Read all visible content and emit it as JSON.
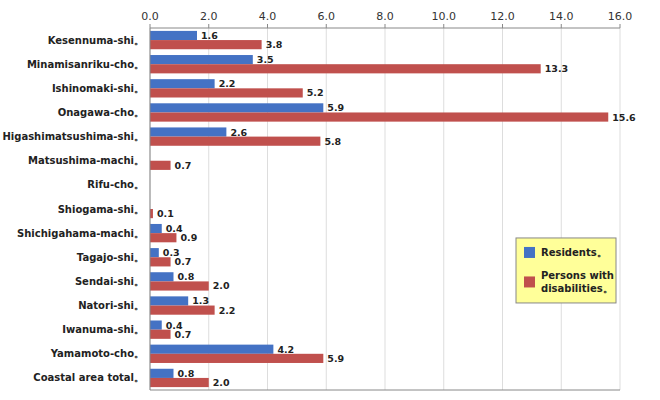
{
  "chart_data": {
    "type": "bar",
    "orientation": "horizontal",
    "categories": [
      "Coastal area total。",
      "Yamamoto-cho。",
      "Iwanuma-shi。",
      "Natori-shi。",
      "Sendai-shi。",
      "Tagajo-shi。",
      "Shichigahama-machi。",
      "Shiogama-shi。",
      "Rifu-cho。",
      "Matsushima-machi。",
      "Higashimatsushima-shi。",
      "Onagawa-cho。",
      "Ishinomaki-shi。",
      "Minamisanriku-cho。",
      "Kesennuma-shi。"
    ],
    "series": [
      {
        "name": "Residents。",
        "color": "#4472C4",
        "values": [
          0.8,
          4.2,
          0.4,
          1.3,
          0.8,
          0.3,
          0.4,
          0.0,
          0.0,
          0.0,
          2.6,
          5.9,
          2.2,
          3.5,
          1.6
        ],
        "value_labels": [
          "0.8",
          "4.2",
          "0.4",
          "1.3",
          "0.8",
          "0.3",
          "0.4",
          null,
          null,
          null,
          "2.6",
          "5.9",
          "2.2",
          "3.5",
          "1.6"
        ]
      },
      {
        "name": "Persons with\ndisabilities。",
        "color": "#C0504D",
        "values": [
          2.0,
          5.9,
          0.7,
          2.2,
          2.0,
          0.7,
          0.9,
          0.1,
          0.0,
          0.7,
          5.8,
          15.6,
          5.2,
          13.3,
          3.8
        ],
        "value_labels": [
          "2.0",
          "5.9",
          "0.7",
          "2.2",
          "2.0",
          "0.7",
          "0.9",
          "0.1",
          null,
          "0.7",
          "5.8",
          "15.6",
          "5.2",
          "13.3",
          "3.8"
        ]
      }
    ],
    "xlim": [
      0,
      16.0
    ],
    "xticks": [
      {
        "value": 0.0,
        "label": "0.0"
      },
      {
        "value": 2.0,
        "label": "2.0"
      },
      {
        "value": 4.0,
        "label": "4.0"
      },
      {
        "value": 6.0,
        "label": "6.0"
      },
      {
        "value": 8.0,
        "label": "8.0"
      },
      {
        "value": 10.0,
        "label": "10.0"
      },
      {
        "value": 12.0,
        "label": "12.0"
      },
      {
        "value": 14.0,
        "label": "14.0"
      },
      {
        "value": 16.0,
        "label": "16.0"
      }
    ],
    "grid": true,
    "legend": "lower right",
    "data_labels": true
  }
}
